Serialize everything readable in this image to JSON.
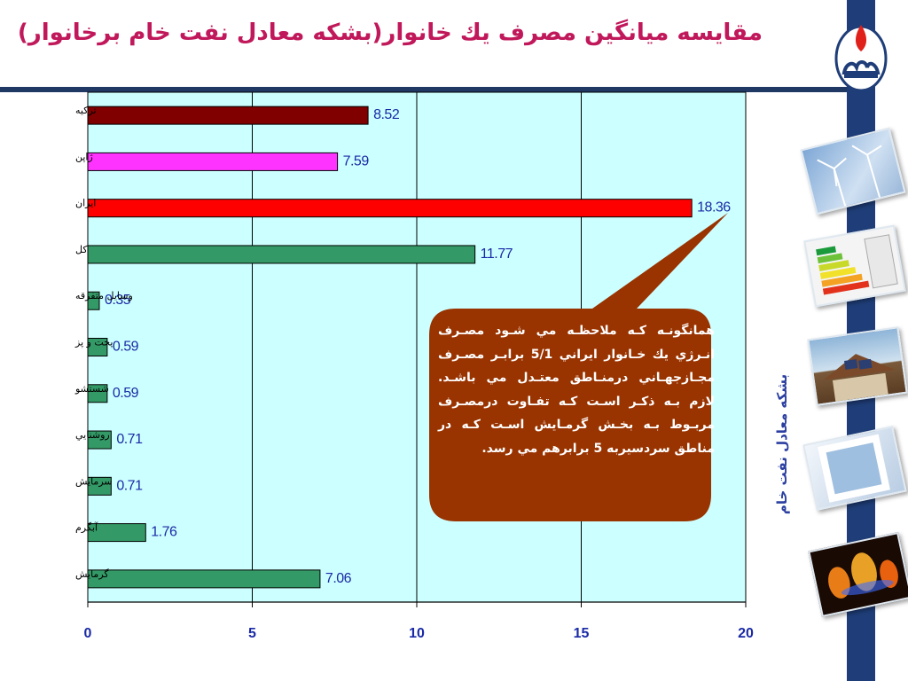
{
  "slide": {
    "title": "مقايسه ميانگين مصرف يك خانوار(بشكه معادل نفت خام برخانوار)",
    "unit_label": "بشکه معادل نفت خام",
    "callout": "همانگونـه كـه ملاحظـه مي شـود مصـرف انـرژي يك خـانوار ايراني 5/1 برابـر مصـرف مجـازجهـاني درمنـاطق معتـدل مي باشـد. لازم بـه ذكـر اسـت كـه تفـاوت درمصـرف مربـوط بـه بخـش گرمـايش اسـت كـه در مناطق سردسيربه 5 برابرهم مي رسد."
  },
  "thumbnails": [
    {
      "name": "wind-turbines-image"
    },
    {
      "name": "energy-label-image"
    },
    {
      "name": "solar-roof-image"
    },
    {
      "name": "window-frame-image"
    },
    {
      "name": "gas-flame-image"
    }
  ],
  "colors": {
    "plot_bg": "#ccffff",
    "default_bar": "#339966",
    "sidebar": "#1f3e79",
    "callout": "#993300",
    "title": "#c0185a",
    "value_text": "#1a2aa6"
  },
  "chart_data": {
    "type": "bar",
    "orientation": "horizontal",
    "categories": [
      "تركيه",
      "ژاپن",
      "ايران",
      "كل",
      "وسايل متفرقه",
      "پخت و پز",
      "شستشو",
      "روشنايي",
      "سرمايش",
      "آبگرم",
      "گرمايش"
    ],
    "values": [
      8.52,
      7.59,
      18.36,
      11.77,
      0.35,
      0.59,
      0.59,
      0.71,
      0.71,
      1.76,
      7.06
    ],
    "value_labels": [
      "8.52",
      "7.59",
      "18.36",
      "11.77",
      "0.35",
      "0.59",
      "0.59",
      "0.71",
      "0.71",
      "1.76",
      "7.06"
    ],
    "bar_colors": [
      "#800000",
      "#ff33ff",
      "#ff0000",
      "#339966",
      "#339966",
      "#339966",
      "#339966",
      "#339966",
      "#339966",
      "#339966",
      "#339966"
    ],
    "xlim": [
      0,
      20
    ],
    "xticks": [
      0,
      5,
      10,
      15,
      20
    ],
    "xtick_labels": [
      "0",
      "5",
      "10",
      "15",
      "20"
    ],
    "grid": "vertical"
  }
}
